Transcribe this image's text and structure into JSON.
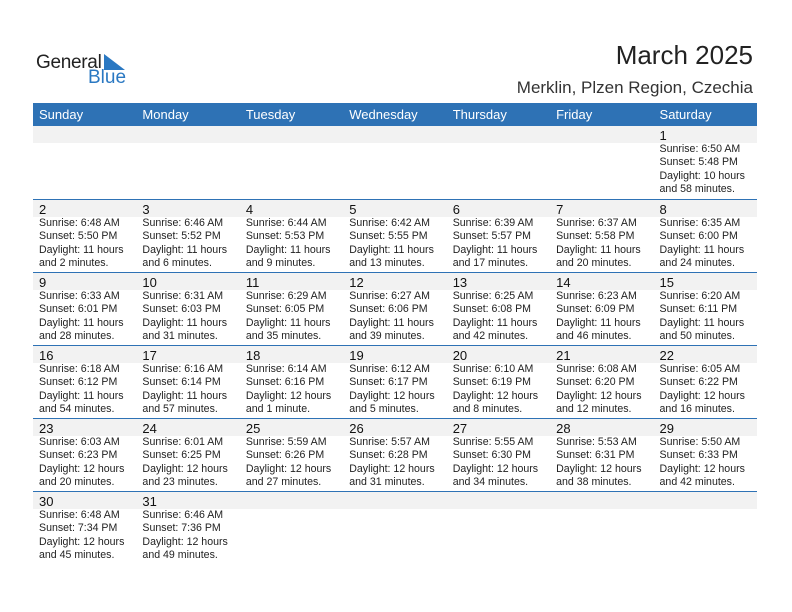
{
  "logo": {
    "text1": "General",
    "text2": "Blue"
  },
  "header": {
    "title": "March 2025",
    "location": "Merklin, Plzen Region, Czechia"
  },
  "days": [
    "Sunday",
    "Monday",
    "Tuesday",
    "Wednesday",
    "Thursday",
    "Friday",
    "Saturday"
  ],
  "weeks": [
    [
      null,
      null,
      null,
      null,
      null,
      null,
      {
        "day": "1",
        "sunrise": "Sunrise: 6:50 AM",
        "sunset": "Sunset: 5:48 PM",
        "daylight1": "Daylight: 10 hours",
        "daylight2": "and 58 minutes."
      }
    ],
    [
      {
        "day": "2",
        "sunrise": "Sunrise: 6:48 AM",
        "sunset": "Sunset: 5:50 PM",
        "daylight1": "Daylight: 11 hours",
        "daylight2": "and 2 minutes."
      },
      {
        "day": "3",
        "sunrise": "Sunrise: 6:46 AM",
        "sunset": "Sunset: 5:52 PM",
        "daylight1": "Daylight: 11 hours",
        "daylight2": "and 6 minutes."
      },
      {
        "day": "4",
        "sunrise": "Sunrise: 6:44 AM",
        "sunset": "Sunset: 5:53 PM",
        "daylight1": "Daylight: 11 hours",
        "daylight2": "and 9 minutes."
      },
      {
        "day": "5",
        "sunrise": "Sunrise: 6:42 AM",
        "sunset": "Sunset: 5:55 PM",
        "daylight1": "Daylight: 11 hours",
        "daylight2": "and 13 minutes."
      },
      {
        "day": "6",
        "sunrise": "Sunrise: 6:39 AM",
        "sunset": "Sunset: 5:57 PM",
        "daylight1": "Daylight: 11 hours",
        "daylight2": "and 17 minutes."
      },
      {
        "day": "7",
        "sunrise": "Sunrise: 6:37 AM",
        "sunset": "Sunset: 5:58 PM",
        "daylight1": "Daylight: 11 hours",
        "daylight2": "and 20 minutes."
      },
      {
        "day": "8",
        "sunrise": "Sunrise: 6:35 AM",
        "sunset": "Sunset: 6:00 PM",
        "daylight1": "Daylight: 11 hours",
        "daylight2": "and 24 minutes."
      }
    ],
    [
      {
        "day": "9",
        "sunrise": "Sunrise: 6:33 AM",
        "sunset": "Sunset: 6:01 PM",
        "daylight1": "Daylight: 11 hours",
        "daylight2": "and 28 minutes."
      },
      {
        "day": "10",
        "sunrise": "Sunrise: 6:31 AM",
        "sunset": "Sunset: 6:03 PM",
        "daylight1": "Daylight: 11 hours",
        "daylight2": "and 31 minutes."
      },
      {
        "day": "11",
        "sunrise": "Sunrise: 6:29 AM",
        "sunset": "Sunset: 6:05 PM",
        "daylight1": "Daylight: 11 hours",
        "daylight2": "and 35 minutes."
      },
      {
        "day": "12",
        "sunrise": "Sunrise: 6:27 AM",
        "sunset": "Sunset: 6:06 PM",
        "daylight1": "Daylight: 11 hours",
        "daylight2": "and 39 minutes."
      },
      {
        "day": "13",
        "sunrise": "Sunrise: 6:25 AM",
        "sunset": "Sunset: 6:08 PM",
        "daylight1": "Daylight: 11 hours",
        "daylight2": "and 42 minutes."
      },
      {
        "day": "14",
        "sunrise": "Sunrise: 6:23 AM",
        "sunset": "Sunset: 6:09 PM",
        "daylight1": "Daylight: 11 hours",
        "daylight2": "and 46 minutes."
      },
      {
        "day": "15",
        "sunrise": "Sunrise: 6:20 AM",
        "sunset": "Sunset: 6:11 PM",
        "daylight1": "Daylight: 11 hours",
        "daylight2": "and 50 minutes."
      }
    ],
    [
      {
        "day": "16",
        "sunrise": "Sunrise: 6:18 AM",
        "sunset": "Sunset: 6:12 PM",
        "daylight1": "Daylight: 11 hours",
        "daylight2": "and 54 minutes."
      },
      {
        "day": "17",
        "sunrise": "Sunrise: 6:16 AM",
        "sunset": "Sunset: 6:14 PM",
        "daylight1": "Daylight: 11 hours",
        "daylight2": "and 57 minutes."
      },
      {
        "day": "18",
        "sunrise": "Sunrise: 6:14 AM",
        "sunset": "Sunset: 6:16 PM",
        "daylight1": "Daylight: 12 hours",
        "daylight2": "and 1 minute."
      },
      {
        "day": "19",
        "sunrise": "Sunrise: 6:12 AM",
        "sunset": "Sunset: 6:17 PM",
        "daylight1": "Daylight: 12 hours",
        "daylight2": "and 5 minutes."
      },
      {
        "day": "20",
        "sunrise": "Sunrise: 6:10 AM",
        "sunset": "Sunset: 6:19 PM",
        "daylight1": "Daylight: 12 hours",
        "daylight2": "and 8 minutes."
      },
      {
        "day": "21",
        "sunrise": "Sunrise: 6:08 AM",
        "sunset": "Sunset: 6:20 PM",
        "daylight1": "Daylight: 12 hours",
        "daylight2": "and 12 minutes."
      },
      {
        "day": "22",
        "sunrise": "Sunrise: 6:05 AM",
        "sunset": "Sunset: 6:22 PM",
        "daylight1": "Daylight: 12 hours",
        "daylight2": "and 16 minutes."
      }
    ],
    [
      {
        "day": "23",
        "sunrise": "Sunrise: 6:03 AM",
        "sunset": "Sunset: 6:23 PM",
        "daylight1": "Daylight: 12 hours",
        "daylight2": "and 20 minutes."
      },
      {
        "day": "24",
        "sunrise": "Sunrise: 6:01 AM",
        "sunset": "Sunset: 6:25 PM",
        "daylight1": "Daylight: 12 hours",
        "daylight2": "and 23 minutes."
      },
      {
        "day": "25",
        "sunrise": "Sunrise: 5:59 AM",
        "sunset": "Sunset: 6:26 PM",
        "daylight1": "Daylight: 12 hours",
        "daylight2": "and 27 minutes."
      },
      {
        "day": "26",
        "sunrise": "Sunrise: 5:57 AM",
        "sunset": "Sunset: 6:28 PM",
        "daylight1": "Daylight: 12 hours",
        "daylight2": "and 31 minutes."
      },
      {
        "day": "27",
        "sunrise": "Sunrise: 5:55 AM",
        "sunset": "Sunset: 6:30 PM",
        "daylight1": "Daylight: 12 hours",
        "daylight2": "and 34 minutes."
      },
      {
        "day": "28",
        "sunrise": "Sunrise: 5:53 AM",
        "sunset": "Sunset: 6:31 PM",
        "daylight1": "Daylight: 12 hours",
        "daylight2": "and 38 minutes."
      },
      {
        "day": "29",
        "sunrise": "Sunrise: 5:50 AM",
        "sunset": "Sunset: 6:33 PM",
        "daylight1": "Daylight: 12 hours",
        "daylight2": "and 42 minutes."
      }
    ],
    [
      {
        "day": "30",
        "sunrise": "Sunrise: 6:48 AM",
        "sunset": "Sunset: 7:34 PM",
        "daylight1": "Daylight: 12 hours",
        "daylight2": "and 45 minutes."
      },
      {
        "day": "31",
        "sunrise": "Sunrise: 6:46 AM",
        "sunset": "Sunset: 7:36 PM",
        "daylight1": "Daylight: 12 hours",
        "daylight2": "and 49 minutes."
      },
      null,
      null,
      null,
      null,
      null
    ]
  ],
  "colors": {
    "accent": "#2e72b5",
    "band": "#f2f2f2",
    "logo_blue": "#2a78c2"
  }
}
